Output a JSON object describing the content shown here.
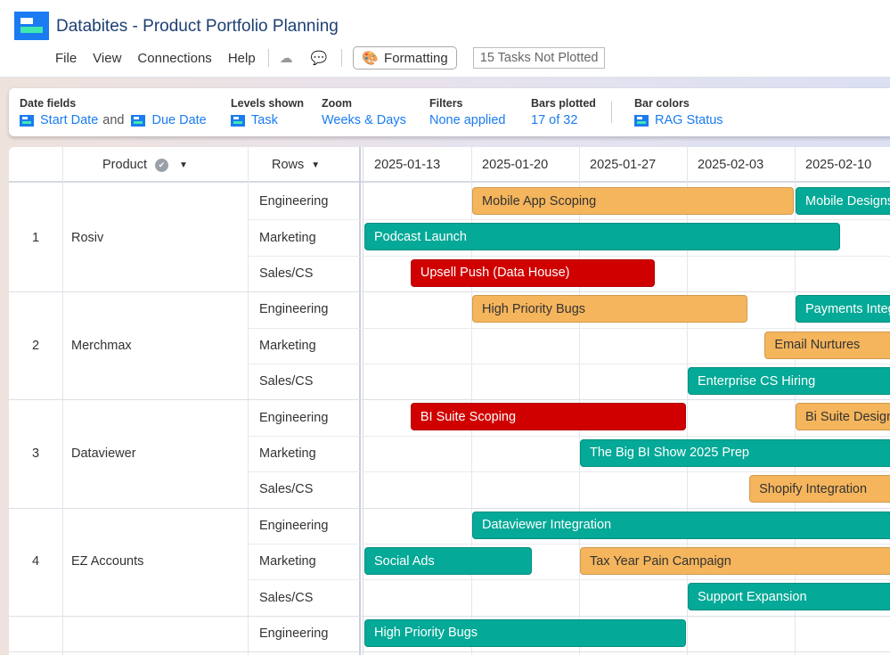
{
  "app": {
    "title": "Databites - Product Portfolio Planning"
  },
  "menu": {
    "items": [
      "File",
      "View",
      "Connections",
      "Help"
    ],
    "formatting_label": "Formatting",
    "not_plotted": "15 Tasks Not Plotted"
  },
  "toolbar": {
    "date_fields": {
      "label": "Date fields",
      "start": "Start Date",
      "and": "and",
      "due": "Due Date"
    },
    "levels": {
      "label": "Levels shown",
      "value": "Task"
    },
    "zoom": {
      "label": "Zoom",
      "value": "Weeks & Days"
    },
    "filters": {
      "label": "Filters",
      "value": "None applied"
    },
    "bars": {
      "label": "Bars plotted",
      "value": "17 of 32"
    },
    "colors": {
      "label": "Bar colors",
      "value": "RAG Status"
    }
  },
  "columns": {
    "product": "Product",
    "rows": "Rows"
  },
  "weeks": [
    "2025-01-13",
    "2025-01-20",
    "2025-01-27",
    "2025-02-03",
    "2025-02-10"
  ],
  "colors": {
    "green": "#04a997",
    "amber": "#f5b55c",
    "red": "#d00000",
    "accent": "#1a7cf0"
  },
  "groups": [
    {
      "num": "1",
      "product": "Rosiv",
      "rows": [
        {
          "name": "Engineering",
          "bars": [
            {
              "label": "Mobile App Scoping",
              "start": "2025-01-20",
              "end": "2025-02-09",
              "status": "amber"
            },
            {
              "label": "Mobile Designs",
              "start": "2025-02-10",
              "end": null,
              "status": "green"
            }
          ]
        },
        {
          "name": "Marketing",
          "bars": [
            {
              "label": "Podcast Launch",
              "start": "2025-01-13",
              "end": "2025-02-12",
              "status": "green"
            }
          ]
        },
        {
          "name": "Sales/CS",
          "bars": [
            {
              "label": "Upsell Push (Data House)",
              "start": "2025-01-16",
              "end": "2025-01-31",
              "status": "red"
            }
          ]
        }
      ]
    },
    {
      "num": "2",
      "product": "Merchmax",
      "rows": [
        {
          "name": "Engineering",
          "bars": [
            {
              "label": "High Priority Bugs",
              "start": "2025-01-20",
              "end": "2025-02-06",
              "status": "amber"
            },
            {
              "label": "Payments Integration",
              "start": "2025-02-10",
              "end": null,
              "status": "green"
            }
          ]
        },
        {
          "name": "Marketing",
          "bars": [
            {
              "label": "Email Nurtures",
              "start": "2025-02-08",
              "end": null,
              "status": "amber"
            }
          ]
        },
        {
          "name": "Sales/CS",
          "bars": [
            {
              "label": "Enterprise CS Hiring",
              "start": "2025-02-03",
              "end": null,
              "status": "green"
            }
          ]
        }
      ]
    },
    {
      "num": "3",
      "product": "Dataviewer",
      "rows": [
        {
          "name": "Engineering",
          "bars": [
            {
              "label": "BI Suite Scoping",
              "start": "2025-01-16",
              "end": "2025-02-02",
              "status": "red"
            },
            {
              "label": "Bi Suite Designs",
              "start": "2025-02-10",
              "end": null,
              "status": "amber"
            }
          ]
        },
        {
          "name": "Marketing",
          "bars": [
            {
              "label": "The Big BI Show 2025 Prep",
              "start": "2025-01-27",
              "end": null,
              "status": "green"
            }
          ]
        },
        {
          "name": "Sales/CS",
          "bars": [
            {
              "label": "Shopify Integration",
              "start": "2025-02-07",
              "end": null,
              "status": "amber"
            }
          ]
        }
      ]
    },
    {
      "num": "4",
      "product": "EZ Accounts",
      "rows": [
        {
          "name": "Engineering",
          "bars": [
            {
              "label": "Dataviewer Integration",
              "start": "2025-01-20",
              "end": null,
              "status": "green"
            }
          ]
        },
        {
          "name": "Marketing",
          "bars": [
            {
              "label": "Social Ads",
              "start": "2025-01-13",
              "end": "2025-01-23",
              "status": "green"
            },
            {
              "label": "Tax Year Pain Campaign",
              "start": "2025-01-27",
              "end": null,
              "status": "amber"
            }
          ]
        },
        {
          "name": "Sales/CS",
          "bars": [
            {
              "label": "Support Expansion",
              "start": "2025-02-03",
              "end": null,
              "status": "green"
            }
          ]
        }
      ]
    },
    {
      "num": "",
      "product": "",
      "rows": [
        {
          "name": "Engineering",
          "bars": [
            {
              "label": "High Priority Bugs",
              "start": "2025-01-13",
              "end": "2025-02-02",
              "status": "green"
            }
          ]
        }
      ]
    }
  ]
}
